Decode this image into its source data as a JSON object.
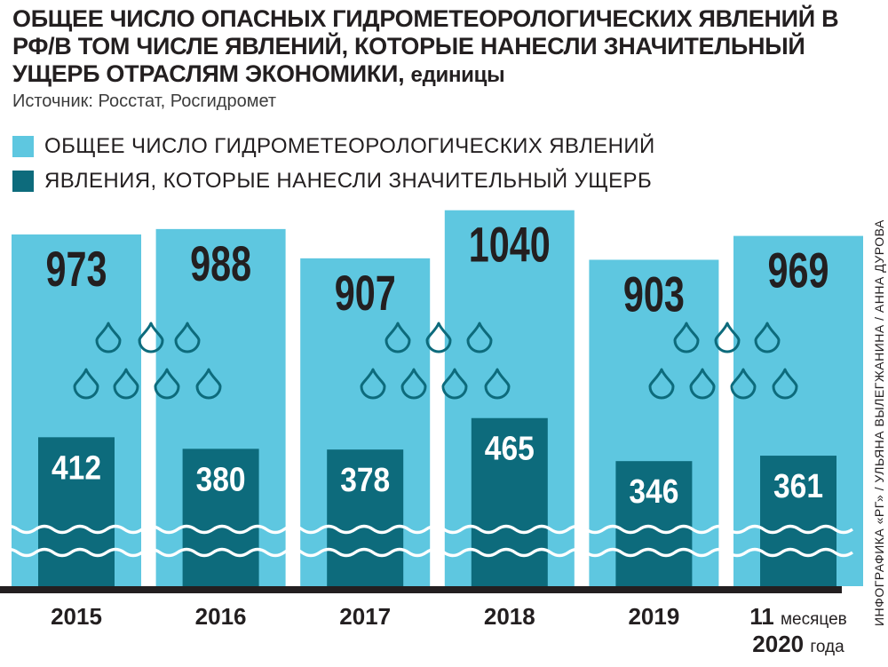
{
  "title": {
    "main": "ОБЩЕЕ ЧИСЛО ОПАСНЫХ ГИДРОМЕТЕОРОЛОГИЧЕСКИХ ЯВЛЕНИЙ В РФ/В ТОМ ЧИСЛЕ ЯВЛЕНИЙ, КОТОРЫЕ НАНЕСЛИ ЗНАЧИТЕЛЬНЫЙ УЩЕРБ ОТРАСЛЯМ ЭКОНОМИКИ,",
    "unit": "единицы"
  },
  "source": "Источник: Росстат, Росгидромет",
  "credit": "ИНФОГРАФИКА «РГ» / УЛЬЯНА ВЫЛЕГЖАНИНА / АННА ДУРОВА",
  "colors": {
    "total": "#5ec7e0",
    "damage": "#0d6b7c",
    "ground": "#231f20",
    "wave": "#ffffff",
    "drop": "#0d6b7c"
  },
  "icons": {
    "drop": "water-drop-icon",
    "wave": "wave-icon"
  },
  "chart_data": {
    "type": "bar",
    "categories": [
      "2015",
      "2016",
      "2017",
      "2018",
      "2019",
      "11 месяцев 2020 года"
    ],
    "category_lines": [
      [
        "2015"
      ],
      [
        "2016"
      ],
      [
        "2017"
      ],
      [
        "2018"
      ],
      [
        "2019"
      ],
      [
        "11 месяцев",
        "2020 года"
      ]
    ],
    "series": [
      {
        "name": "ОБЩЕЕ ЧИСЛО ГИДРОМЕТЕОРОЛОГИЧЕСКИХ ЯВЛЕНИЙ",
        "values": [
          973,
          988,
          907,
          1040,
          903,
          969
        ]
      },
      {
        "name": "ЯВЛЕНИЯ, КОТОРЫЕ НАНЕСЛИ ЗНАЧИТЕЛЬНЫЙ УЩЕРБ",
        "values": [
          412,
          380,
          378,
          465,
          346,
          361
        ]
      }
    ],
    "ylim": [
      0,
      1100
    ],
    "grid": false,
    "legend": "top-left",
    "data_labels": true
  }
}
